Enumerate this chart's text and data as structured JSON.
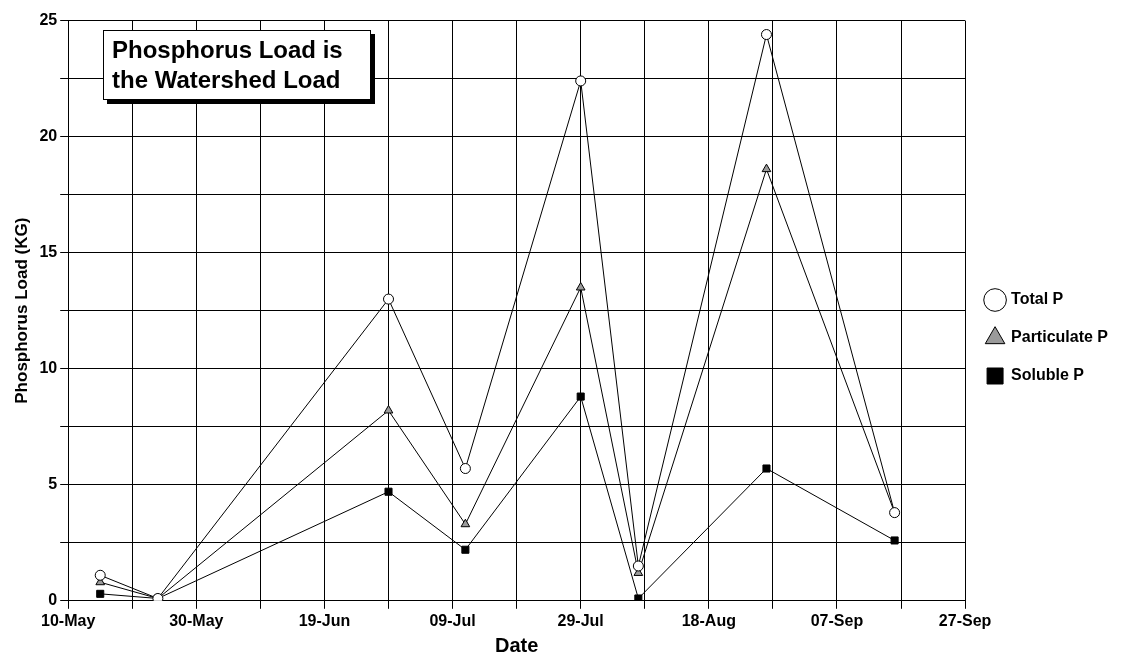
{
  "chart_data": {
    "type": "line",
    "xlabel": "Date",
    "ylabel": "Phosphorus Load (KG)",
    "annotations": [
      "Phosphorus Load is the Watershed Load"
    ],
    "x": [
      "--05-15",
      "--05-24",
      "--06-29",
      "--07-11",
      "--07-29",
      "--08-07",
      "--08-27",
      "--09-16"
    ],
    "series": [
      {
        "name": "Total P",
        "color": "#000000",
        "marker": "circle",
        "values": [
          1.1,
          0.1,
          13.0,
          5.7,
          22.4,
          1.5,
          24.4,
          3.8
        ]
      },
      {
        "name": "Particulate P",
        "color": "#000000",
        "marker": "triangle",
        "values": [
          0.8,
          0.1,
          8.2,
          3.3,
          13.5,
          1.2,
          18.6,
          3.8
        ]
      },
      {
        "name": "Soluble P",
        "color": "#000000",
        "marker": "square",
        "values": [
          0.3,
          0.1,
          4.7,
          2.2,
          8.8,
          0.1,
          5.7,
          2.6
        ]
      }
    ],
    "xlim": [
      "--05-10",
      "--09-27"
    ],
    "xticks": [
      {
        "value": "--05-10",
        "label": "10-May"
      },
      {
        "value": "--05-20",
        "label": null
      },
      {
        "value": "--05-30",
        "label": "30-May"
      },
      {
        "value": "--06-09",
        "label": null
      },
      {
        "value": "--06-19",
        "label": "19-Jun"
      },
      {
        "value": "--06-29",
        "label": null
      },
      {
        "value": "--07-09",
        "label": "09-Jul"
      },
      {
        "value": "--07-19",
        "label": null
      },
      {
        "value": "--07-29",
        "label": "29-Jul"
      },
      {
        "value": "--08-08",
        "label": null
      },
      {
        "value": "--08-18",
        "label": "18-Aug"
      },
      {
        "value": "--08-28",
        "label": null
      },
      {
        "value": "--09-07",
        "label": "07-Sep"
      },
      {
        "value": "--09-17",
        "label": null
      },
      {
        "value": "--09-27",
        "label": "27-Sep"
      }
    ],
    "ylim": [
      0,
      25
    ],
    "yticks": [
      0,
      {
        "value": 2.5,
        "label": null
      },
      5,
      {
        "value": 7.5,
        "label": null
      },
      10,
      {
        "value": 12.5,
        "label": null
      },
      15,
      {
        "value": 17.5,
        "label": null
      },
      20,
      {
        "value": 22.5,
        "label": null
      },
      25
    ],
    "grid": true,
    "legend": "right",
    "line_style": "solid"
  }
}
